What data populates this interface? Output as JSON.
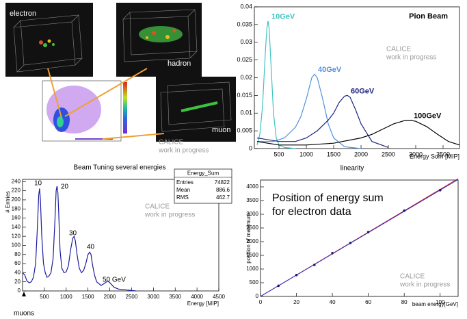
{
  "event_display": {
    "labels": [
      "electron",
      "hadron",
      "muon"
    ],
    "note": [
      "CALICE",
      "work in progress"
    ]
  },
  "chart_data": [
    {
      "type": "line",
      "title": "Pion Beam",
      "xlabel": "Energy Sum [MIP]",
      "annotation": [
        "CALICE",
        "work in progress"
      ],
      "xlim": [
        50,
        3800
      ],
      "ylim": [
        0,
        0.04
      ],
      "xticks": [
        500,
        1000,
        1500,
        2000,
        2500,
        3000,
        3500
      ],
      "yticks": [
        0,
        0.005,
        0.01,
        0.015,
        0.02,
        0.025,
        0.03,
        0.035,
        0.04
      ],
      "series": [
        {
          "name": "10GeV",
          "color": "#3cc4c0",
          "x": [
            100,
            150,
            200,
            250,
            280,
            300,
            320,
            350,
            400,
            450,
            500,
            600,
            800
          ],
          "values": [
            0.001,
            0.004,
            0.012,
            0.027,
            0.034,
            0.036,
            0.034,
            0.025,
            0.01,
            0.003,
            0.001,
            0.0003,
            0
          ]
        },
        {
          "name": "40GeV",
          "color": "#4f8fe0",
          "x": [
            100,
            400,
            600,
            800,
            900,
            1000,
            1100,
            1150,
            1200,
            1300,
            1400,
            1500,
            1700,
            2000
          ],
          "values": [
            0.002,
            0.002,
            0.003,
            0.006,
            0.009,
            0.014,
            0.02,
            0.021,
            0.02,
            0.014,
            0.007,
            0.003,
            0.0005,
            0
          ]
        },
        {
          "name": "60GeV",
          "color": "#1a237e",
          "x": [
            100,
            500,
            800,
            1000,
            1200,
            1400,
            1500,
            1600,
            1700,
            1750,
            1800,
            1900,
            2000,
            2200,
            2500
          ],
          "values": [
            0.003,
            0.002,
            0.002,
            0.003,
            0.005,
            0.008,
            0.01,
            0.013,
            0.0148,
            0.015,
            0.0145,
            0.011,
            0.007,
            0.002,
            0.0003
          ]
        },
        {
          "name": "100GeV",
          "color": "#000000",
          "x": [
            100,
            500,
            1000,
            1500,
            2000,
            2200,
            2400,
            2600,
            2800,
            2900,
            3000,
            3200,
            3400,
            3600,
            3800
          ],
          "values": [
            0.002,
            0.001,
            0.001,
            0.0015,
            0.003,
            0.004,
            0.0055,
            0.007,
            0.0079,
            0.008,
            0.0077,
            0.0062,
            0.004,
            0.002,
            0.001
          ]
        }
      ]
    },
    {
      "type": "line",
      "title": "Beam Tuning several energies",
      "xlabel": "Energy [MIP]",
      "ylabel": "# Entries",
      "annotation": [
        "CALICE",
        "work in progress"
      ],
      "stats": {
        "title": "Energy_Sum",
        "labels": [
          "Entries",
          "Mean",
          "RMS"
        ],
        "values": [
          74822,
          886.6,
          462.7
        ]
      },
      "labels": [
        "10",
        "20",
        "30",
        "40",
        "50 GeV",
        "muons"
      ],
      "xlim": [
        0,
        4500
      ],
      "ylim": [
        0,
        245
      ],
      "xticks": [
        500,
        1000,
        1500,
        2000,
        2500,
        3000,
        3500,
        4000,
        4500
      ],
      "yticks": [
        0,
        20,
        40,
        60,
        80,
        100,
        120,
        140,
        160,
        180,
        200,
        220,
        240
      ],
      "series": [
        {
          "color": "#1a1aa0",
          "x": [
            0,
            50,
            100,
            150,
            200,
            250,
            300,
            340,
            370,
            390,
            410,
            440,
            480,
            520,
            560,
            600,
            650,
            700,
            740,
            770,
            790,
            810,
            830,
            860,
            900,
            950,
            1000,
            1050,
            1100,
            1150,
            1180,
            1210,
            1250,
            1300,
            1350,
            1400,
            1450,
            1500,
            1540,
            1570,
            1600,
            1650,
            1700,
            1800,
            1900,
            1950,
            2000,
            2100,
            2200,
            2400,
            2600
          ],
          "values": [
            40,
            35,
            22,
            18,
            20,
            30,
            60,
            140,
            210,
            225,
            200,
            120,
            60,
            40,
            30,
            32,
            40,
            70,
            150,
            220,
            230,
            215,
            170,
            90,
            50,
            40,
            42,
            55,
            90,
            115,
            120,
            110,
            80,
            50,
            40,
            45,
            60,
            80,
            85,
            80,
            60,
            35,
            20,
            12,
            18,
            22,
            18,
            8,
            4,
            2,
            0
          ]
        }
      ]
    },
    {
      "type": "scatter",
      "title": "linearity",
      "xlabel": "beam energy[GeV]",
      "ylabel": "position of maximum",
      "annotation": [
        "CALICE",
        "work in progress"
      ],
      "text": [
        "Position of energy sum",
        "for electron data"
      ],
      "xlim": [
        0,
        110
      ],
      "ylim": [
        0,
        4250
      ],
      "xticks": [
        0,
        20,
        40,
        60,
        80,
        100
      ],
      "yticks": [
        0,
        500,
        1000,
        1500,
        2000,
        2500,
        3000,
        3500,
        4000
      ],
      "series": [
        {
          "color": "#1a1a6e",
          "x": [
            10,
            20,
            30,
            40,
            50,
            60,
            80,
            100
          ],
          "values": [
            390,
            780,
            1150,
            1580,
            1950,
            2350,
            3130,
            3880
          ]
        }
      ],
      "fit_lines": [
        {
          "color": "#d01010",
          "x": [
            0,
            110
          ],
          "values": [
            0,
            4300
          ]
        },
        {
          "color": "#3030d0",
          "x": [
            0,
            110
          ],
          "values": [
            0,
            4270
          ]
        }
      ]
    }
  ]
}
